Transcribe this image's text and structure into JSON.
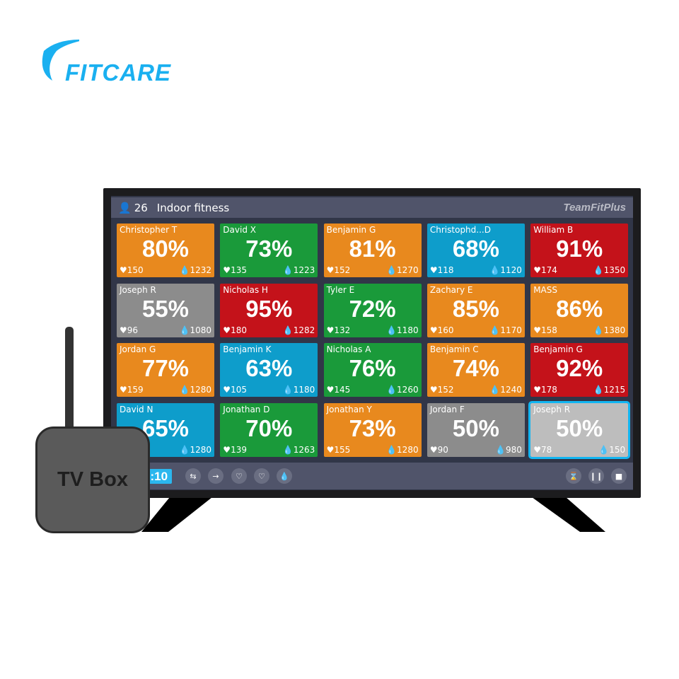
{
  "logo": {
    "text": "FITCARE",
    "color": "#1AB0F0"
  },
  "header": {
    "user_icon": "user-icon",
    "count": "26",
    "title": "Indoor fitness",
    "brand": "TeamFitPlus"
  },
  "colors": {
    "orange": "#E8891E",
    "green": "#1A9A3A",
    "blue": "#0E9DCB",
    "red": "#C4121A",
    "gray": "#8C8C8C",
    "lightgray": "#BDBDBD",
    "selected_border": "#12B6F2"
  },
  "tiles": [
    {
      "name": "Christopher T",
      "pct": "80%",
      "hr": "150",
      "kcal": "1232",
      "color": "orange"
    },
    {
      "name": "David X",
      "pct": "73%",
      "hr": "135",
      "kcal": "1223",
      "color": "green"
    },
    {
      "name": "Benjamin G",
      "pct": "81%",
      "hr": "152",
      "kcal": "1270",
      "color": "orange"
    },
    {
      "name": "Christophd...D",
      "pct": "68%",
      "hr": "118",
      "kcal": "1120",
      "color": "blue"
    },
    {
      "name": "William B",
      "pct": "91%",
      "hr": "174",
      "kcal": "1350",
      "color": "red"
    },
    {
      "name": "Joseph R",
      "pct": "55%",
      "hr": "96",
      "kcal": "1080",
      "color": "gray"
    },
    {
      "name": "Nicholas H",
      "pct": "95%",
      "hr": "180",
      "kcal": "1282",
      "color": "red"
    },
    {
      "name": "Tyler E",
      "pct": "72%",
      "hr": "132",
      "kcal": "1180",
      "color": "green"
    },
    {
      "name": "Zachary E",
      "pct": "85%",
      "hr": "160",
      "kcal": "1170",
      "color": "orange"
    },
    {
      "name": "MASS",
      "pct": "86%",
      "hr": "158",
      "kcal": "1380",
      "color": "orange"
    },
    {
      "name": "Jordan G",
      "pct": "77%",
      "hr": "159",
      "kcal": "1280",
      "color": "orange"
    },
    {
      "name": "Benjamin K",
      "pct": "63%",
      "hr": "105",
      "kcal": "1180",
      "color": "blue"
    },
    {
      "name": "Nicholas A",
      "pct": "76%",
      "hr": "145",
      "kcal": "1260",
      "color": "green"
    },
    {
      "name": "Benjamin C",
      "pct": "74%",
      "hr": "152",
      "kcal": "1240",
      "color": "orange"
    },
    {
      "name": "Benjamin G",
      "pct": "92%",
      "hr": "178",
      "kcal": "1215",
      "color": "red"
    },
    {
      "name": "David N",
      "pct": "65%",
      "hr": "",
      "kcal": "1280",
      "color": "blue"
    },
    {
      "name": "Jonathan  D",
      "pct": "70%",
      "hr": "139",
      "kcal": "1263",
      "color": "green"
    },
    {
      "name": "Jonathan  Y",
      "pct": "73%",
      "hr": "155",
      "kcal": "1280",
      "color": "orange"
    },
    {
      "name": "Jordan F",
      "pct": "50%",
      "hr": "90",
      "kcal": "980",
      "color": "gray"
    },
    {
      "name": "Joseph R",
      "pct": "50%",
      "hr": "78",
      "kcal": "150",
      "color": "lightgray",
      "selected": true
    }
  ],
  "footer": {
    "timer": "3:10",
    "left_icons": [
      "swap-icon",
      "exit-icon",
      "heart-rate-icon",
      "heart-percent-icon",
      "flame-icon"
    ],
    "right_icons": [
      "hourglass-icon",
      "pause-icon",
      "stop-icon"
    ]
  },
  "tvbox": {
    "label": "TV Box"
  }
}
